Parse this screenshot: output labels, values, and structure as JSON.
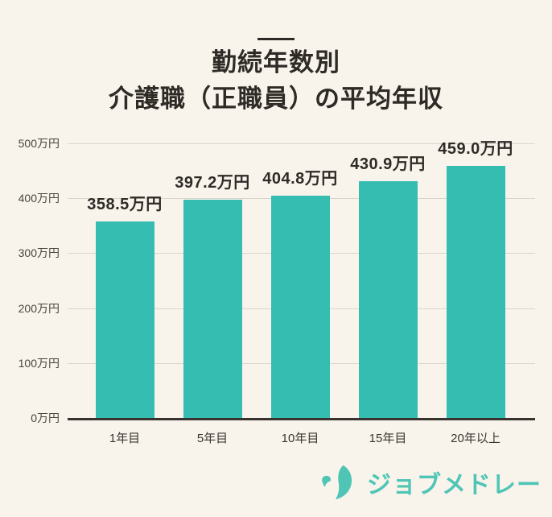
{
  "header": {
    "title_line1": "勤続年数別",
    "title_line2": "介護職（正職員）の平均年収"
  },
  "chart_data": {
    "type": "bar",
    "title": "勤続年数別 介護職（正職員）の平均年収",
    "categories": [
      "1年目",
      "5年目",
      "10年目",
      "15年目",
      "20年以上"
    ],
    "values": [
      358.5,
      397.2,
      404.8,
      430.9,
      459.0
    ],
    "value_labels": [
      "358.5万円",
      "397.2万円",
      "404.8万円",
      "430.9万円",
      "459.0万円"
    ],
    "unit": "万円",
    "xlabel": "",
    "ylabel": "",
    "ylim": [
      0,
      500
    ],
    "y_ticks": [
      {
        "value": 500,
        "label": "500万円"
      },
      {
        "value": 400,
        "label": "400万円"
      },
      {
        "value": 300,
        "label": "300万円"
      },
      {
        "value": 200,
        "label": "200万円"
      },
      {
        "value": 100,
        "label": "100万円"
      },
      {
        "value": 0,
        "label": "0万円"
      }
    ],
    "grid": true,
    "legend": false,
    "colors": {
      "bar": "#36BDB2",
      "grid_line": "#DAD5CC",
      "axis_line": "#38332E",
      "text": "#2E2A26",
      "background": "#F8F4EC"
    }
  },
  "footer": {
    "logo_icon": "crescent-moon-icon",
    "logo_text": "ジョブメドレー",
    "logo_color": "#4FC5B6"
  }
}
